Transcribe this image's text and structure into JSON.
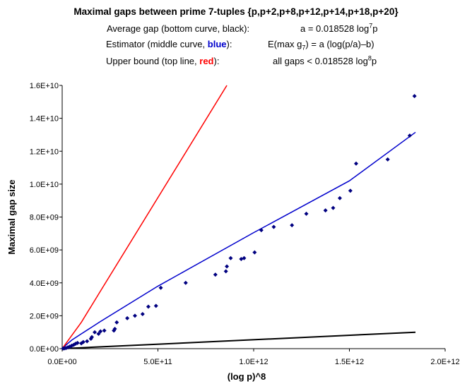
{
  "legend": {
    "avg": {
      "label": "Average gap (bottom curve, black):",
      "formula_pre": "a = 0.018528 log",
      "formula_sup": "7",
      "formula_post": "p"
    },
    "est": {
      "label_pre": "Estimator (middle curve, ",
      "label_color": "blue",
      "label_post": "):",
      "formula_pre": "E(max g",
      "formula_sub": "7",
      "formula_post": ") = a (log(p/a)–b)"
    },
    "upper": {
      "label_pre": "Upper bound (top line, ",
      "label_color": "red",
      "label_post": "):",
      "formula_pre": "all gaps < 0.018528 log",
      "formula_sup": "8",
      "formula_post": "p"
    }
  },
  "colors": {
    "points": "#000080",
    "estimator": "#0000cc",
    "upper": "#ff0000",
    "average": "#000000"
  },
  "chart_data": {
    "type": "scatter",
    "title": "Maximal gaps between prime 7-tuples {p,p+2,p+8,p+12,p+14,p+18,p+20}",
    "xlabel": "(log p)^8",
    "ylabel": "Maximal gap size",
    "xlim": [
      0,
      2000000000000.0
    ],
    "ylim": [
      0,
      16000000000.0
    ],
    "xticks": [
      0,
      500000000000.0,
      1000000000000.0,
      1500000000000.0,
      2000000000000.0
    ],
    "xtick_labels": [
      "0.0E+00",
      "5.0E+11",
      "1.0E+12",
      "1.5E+12",
      "2.0E+12"
    ],
    "yticks": [
      0,
      2000000000.0,
      4000000000.0,
      6000000000.0,
      8000000000.0,
      10000000000.0,
      12000000000.0,
      14000000000.0,
      16000000000.0
    ],
    "ytick_labels": [
      "0.0E+00",
      "2.0E+09",
      "4.0E+09",
      "6.0E+09",
      "8.0E+09",
      "1.0E+10",
      "1.2E+10",
      "1.4E+10",
      "1.6E+10"
    ],
    "grid": false,
    "series": [
      {
        "kind": "points",
        "values": [
          [
            5000000000.0,
            10000000.0
          ],
          [
            12000000000.0,
            20000000.0
          ],
          [
            20000000000.0,
            40000000.0
          ],
          [
            30000000000.0,
            80000000.0
          ],
          [
            40000000000.0,
            130000000.0
          ],
          [
            50000000000.0,
            180000000.0
          ],
          [
            60000000000.0,
            230000000.0
          ],
          [
            70000000000.0,
            300000000.0
          ],
          [
            80000000000.0,
            350000000.0
          ],
          [
            100000000000.0,
            320000000.0
          ],
          [
            110000000000.0,
            400000000.0
          ],
          [
            130000000000.0,
            450000000.0
          ],
          [
            150000000000.0,
            600000000.0
          ],
          [
            155000000000.0,
            700000000.0
          ],
          [
            170000000000.0,
            1000000000.0
          ],
          [
            190000000000.0,
            900000000.0
          ],
          [
            200000000000.0,
            1050000000.0
          ],
          [
            220000000000.0,
            1100000000.0
          ],
          [
            270000000000.0,
            1100000000.0
          ],
          [
            275000000000.0,
            1200000000.0
          ],
          [
            285000000000.0,
            1600000000.0
          ],
          [
            340000000000.0,
            1850000000.0
          ],
          [
            380000000000.0,
            2000000000.0
          ],
          [
            420000000000.0,
            2100000000.0
          ],
          [
            450000000000.0,
            2550000000.0
          ],
          [
            490000000000.0,
            2600000000.0
          ],
          [
            515000000000.0,
            3700000000.0
          ],
          [
            645000000000.0,
            4000000000.0
          ],
          [
            800000000000.0,
            4500000000.0
          ],
          [
            855000000000.0,
            4700000000.0
          ],
          [
            860000000000.0,
            5000000000.0
          ],
          [
            880000000000.0,
            5500000000.0
          ],
          [
            935000000000.0,
            5450000000.0
          ],
          [
            950000000000.0,
            5500000000.0
          ],
          [
            1005000000000.0,
            5850000000.0
          ],
          [
            1040000000000.0,
            7200000000.0
          ],
          [
            1105000000000.0,
            7400000000.0
          ],
          [
            1200000000000.0,
            7500000000.0
          ],
          [
            1275000000000.0,
            8200000000.0
          ],
          [
            1375000000000.0,
            8400000000.0
          ],
          [
            1415000000000.0,
            8550000000.0
          ],
          [
            1450000000000.0,
            9150000000.0
          ],
          [
            1505000000000.0,
            9600000000.0
          ],
          [
            1535000000000.0,
            11250000000.0
          ],
          [
            1700000000000.0,
            11500000000.0
          ],
          [
            1815000000000.0,
            12950000000.0
          ],
          [
            1840000000000.0,
            15350000000.0
          ]
        ]
      },
      {
        "kind": "line",
        "values": [
          [
            0,
            0
          ],
          [
            10000000000.0,
            120000000.0
          ],
          [
            50000000000.0,
            520000000.0
          ],
          [
            100000000000.0,
            900000000.0
          ],
          [
            200000000000.0,
            1650000000.0
          ],
          [
            500000000000.0,
            3800000000.0
          ],
          [
            1000000000000.0,
            7050000000.0
          ],
          [
            1500000000000.0,
            10200000000.0
          ],
          [
            1845000000000.0,
            13150000000.0
          ]
        ]
      },
      {
        "kind": "line",
        "values": [
          [
            0,
            0
          ],
          [
            50000000000.0,
            800000000.0
          ],
          [
            100000000000.0,
            1600000000.0
          ],
          [
            200000000000.0,
            3500000000.0
          ],
          [
            860000000000.0,
            16000000000.0
          ]
        ]
      },
      {
        "kind": "line",
        "values": [
          [
            0,
            0
          ],
          [
            1845000000000.0,
            1000000000.0
          ]
        ]
      }
    ]
  }
}
